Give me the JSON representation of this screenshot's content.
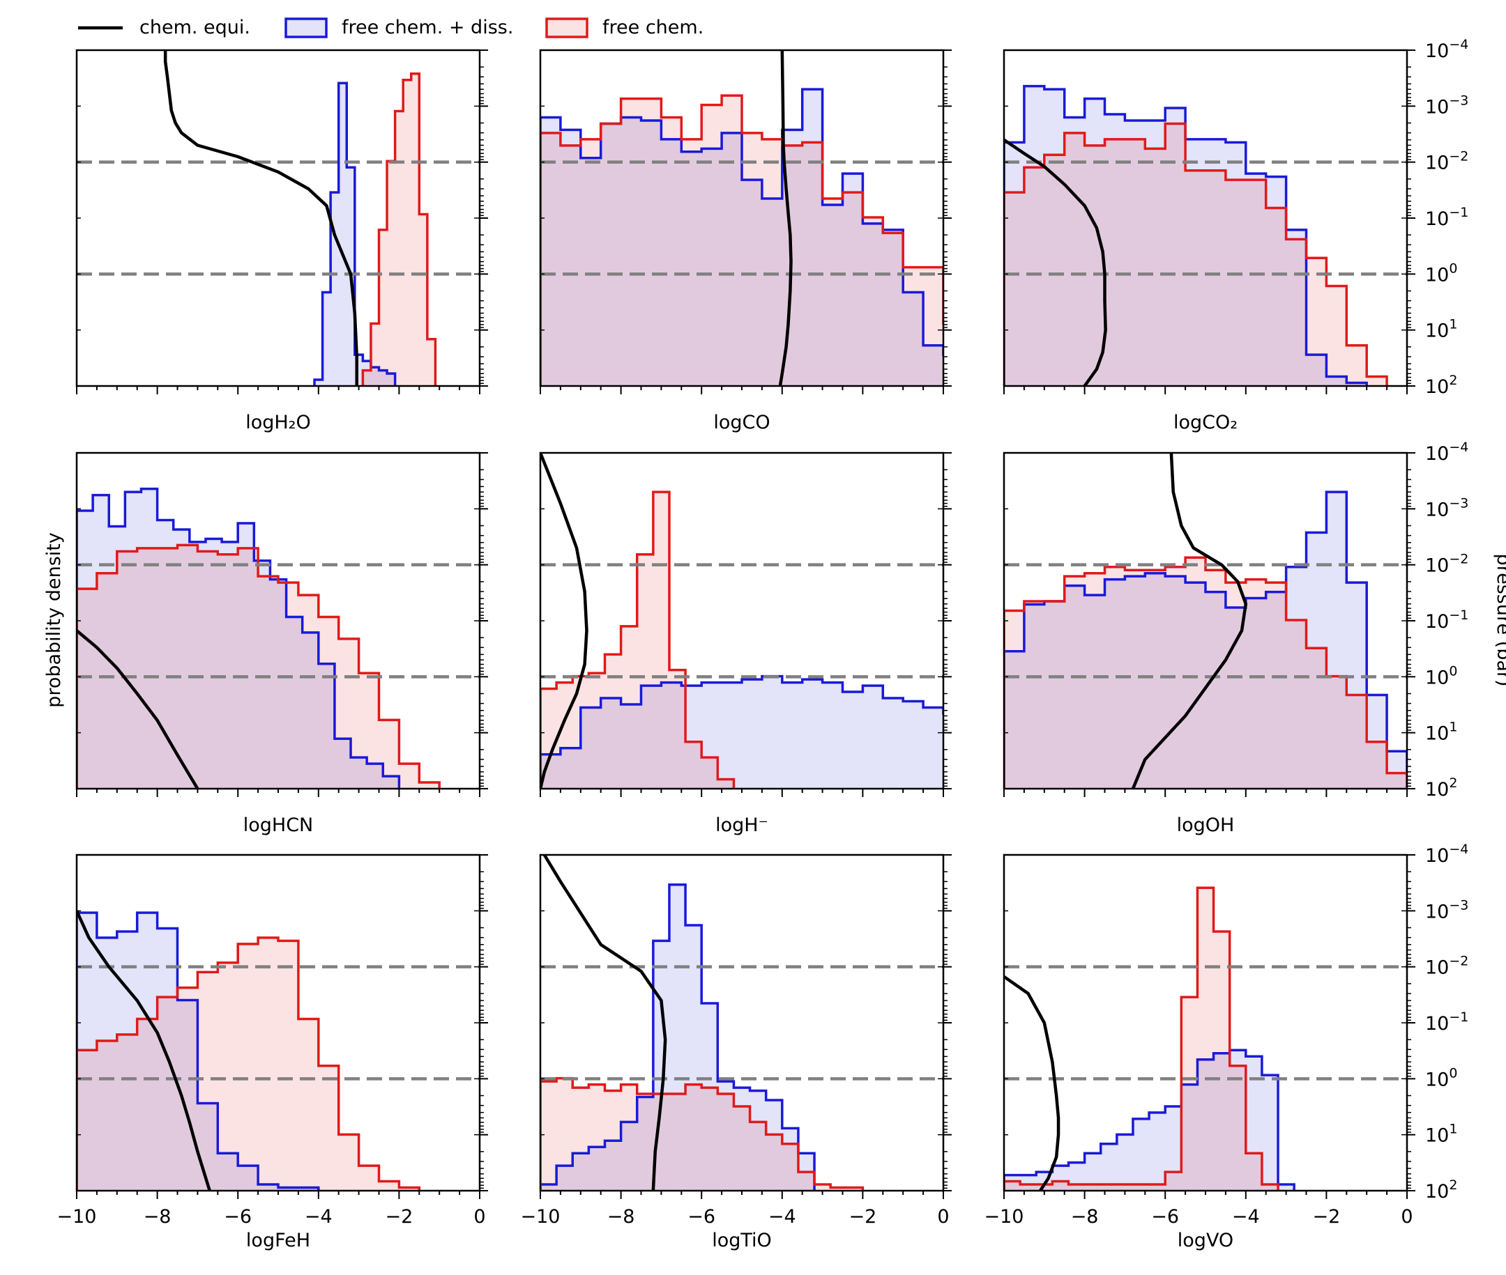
{
  "legend": {
    "placement": "top-left, outside plots",
    "entries": [
      {
        "label": "chem. equi.",
        "color": "#000000",
        "style": "line"
      },
      {
        "label": "free chem. + diss.",
        "color": "#1a1ad8",
        "fill": "rgba(26,26,216,0.12)",
        "style": "box"
      },
      {
        "label": "free chem.",
        "color": "#e01a1a",
        "fill": "rgba(224,26,26,0.12)",
        "style": "box"
      }
    ]
  },
  "axes": {
    "x_ticks": [
      "−10",
      "−8",
      "−6",
      "−4",
      "−2",
      "0"
    ],
    "left_ylabel": "probability density",
    "right_ylabel": "pressure (bar)",
    "right_ticks": [
      {
        "base": "10",
        "exp": "−4"
      },
      {
        "base": "10",
        "exp": "−3"
      },
      {
        "base": "10",
        "exp": "−2"
      },
      {
        "base": "10",
        "exp": "−1"
      },
      {
        "base": "10",
        "exp": "0"
      },
      {
        "base": "10",
        "exp": "1"
      },
      {
        "base": "10",
        "exp": "2"
      }
    ],
    "dashed_pressure_lines_bar": [
      0.01,
      1.0
    ]
  },
  "chart_data": [
    {
      "type": "histogram",
      "title": "",
      "xlabel": "logH₂O",
      "xlim": [
        -10,
        0
      ],
      "ylim_pressure": [
        0.0001,
        100
      ],
      "y_scale": "log",
      "series": [
        {
          "name": "free chem. + diss.",
          "edges_start": -4.1,
          "bin_width": 0.2,
          "values": [
            0.02,
            0.3,
            0.62,
            0.97,
            0.7,
            0.1,
            0.08,
            0.06,
            0.05,
            0.04
          ]
        },
        {
          "name": "free chem.",
          "edges_start": -2.9,
          "bin_width": 0.2,
          "values": [
            0.05,
            0.2,
            0.5,
            0.72,
            0.88,
            0.98,
            1.0,
            0.55,
            0.15
          ]
        },
        {
          "name": "chem. equi.",
          "kind": "profile",
          "x": [
            -7.8,
            -7.8,
            -7.75,
            -7.7,
            -7.65,
            -7.55,
            -7.4,
            -7.0,
            -6.0,
            -5.0,
            -4.25,
            -3.8,
            -3.6,
            -3.2,
            -3.1,
            -3.05,
            -3.05
          ],
          "pressure": [
            0.0001,
            0.00016,
            0.0003,
            0.0006,
            0.0012,
            0.002,
            0.003,
            0.005,
            0.008,
            0.015,
            0.03,
            0.06,
            0.2,
            1,
            5,
            30,
            100
          ]
        }
      ]
    },
    {
      "type": "histogram",
      "title": "",
      "xlabel": "logCO",
      "xlim": [
        -10,
        0
      ],
      "ylim_pressure": [
        0.0001,
        100
      ],
      "y_scale": "log",
      "series": [
        {
          "name": "free chem. + diss.",
          "edges_start": -10,
          "bin_width": 0.5,
          "values": [
            0.86,
            0.82,
            0.73,
            0.84,
            0.86,
            0.85,
            0.79,
            0.75,
            0.76,
            0.81,
            0.66,
            0.6,
            0.82,
            0.95,
            0.58,
            0.68,
            0.52,
            0.5,
            0.3,
            0.13,
            0.1,
            0.05
          ]
        },
        {
          "name": "free chem.",
          "edges_start": -10,
          "bin_width": 0.5,
          "values": [
            0.81,
            0.77,
            0.79,
            0.84,
            0.92,
            0.92,
            0.86,
            0.79,
            0.9,
            0.93,
            0.81,
            0.79,
            0.77,
            0.78,
            0.6,
            0.62,
            0.54,
            0.49,
            0.38,
            0.38,
            0.2,
            0.1
          ]
        },
        {
          "name": "chem. equi.",
          "kind": "profile",
          "x": [
            -4.0,
            -3.98,
            -3.97,
            -3.95,
            -3.9,
            -3.85,
            -3.8,
            -3.78,
            -3.8,
            -3.85,
            -3.9,
            -4.0,
            -4.05
          ],
          "pressure": [
            0.0001,
            0.001,
            0.005,
            0.01,
            0.03,
            0.08,
            0.2,
            0.6,
            2,
            8,
            20,
            60,
            100
          ]
        }
      ]
    },
    {
      "type": "histogram",
      "title": "",
      "xlabel": "logCO₂",
      "xlim": [
        -10,
        0
      ],
      "ylim_pressure": [
        0.0001,
        100
      ],
      "y_scale": "log",
      "series": [
        {
          "name": "free chem. + diss.",
          "edges_start": -10,
          "bin_width": 0.5,
          "values": [
            0.78,
            0.96,
            0.95,
            0.86,
            0.92,
            0.87,
            0.85,
            0.85,
            0.89,
            0.79,
            0.79,
            0.78,
            0.68,
            0.67,
            0.5,
            0.1,
            0.03,
            0.01
          ]
        },
        {
          "name": "free chem.",
          "edges_start": -10,
          "bin_width": 0.5,
          "values": [
            0.62,
            0.7,
            0.74,
            0.81,
            0.77,
            0.79,
            0.79,
            0.76,
            0.84,
            0.69,
            0.69,
            0.66,
            0.66,
            0.57,
            0.47,
            0.41,
            0.32,
            0.13,
            0.03
          ]
        },
        {
          "name": "chem. equi.",
          "kind": "profile",
          "x": [
            -10,
            -9.5,
            -9.0,
            -8.5,
            -8.0,
            -7.7,
            -7.55,
            -7.5,
            -7.5,
            -7.48,
            -7.55,
            -7.7,
            -8.0
          ],
          "pressure": [
            0.004,
            0.007,
            0.012,
            0.025,
            0.06,
            0.15,
            0.4,
            1,
            3,
            10,
            25,
            50,
            100
          ]
        }
      ]
    },
    {
      "type": "histogram",
      "title": "",
      "xlabel": "logHCN",
      "xlim": [
        -10,
        0
      ],
      "ylim_pressure": [
        0.0001,
        100
      ],
      "y_scale": "log",
      "series": [
        {
          "name": "free chem. + diss.",
          "edges_start": -10,
          "bin_width": 0.4,
          "values": [
            0.89,
            0.94,
            0.84,
            0.95,
            0.96,
            0.86,
            0.83,
            0.79,
            0.8,
            0.79,
            0.85,
            0.73,
            0.67,
            0.55,
            0.5,
            0.4,
            0.16,
            0.1,
            0.08,
            0.04
          ]
        },
        {
          "name": "free chem.",
          "edges_start": -10,
          "bin_width": 0.5,
          "values": [
            0.64,
            0.69,
            0.76,
            0.77,
            0.77,
            0.78,
            0.76,
            0.75,
            0.77,
            0.68,
            0.66,
            0.62,
            0.55,
            0.48,
            0.37,
            0.22,
            0.08,
            0.02
          ]
        },
        {
          "name": "chem. equi.",
          "kind": "profile",
          "x": [
            -10,
            -9.5,
            -9.0,
            -8.5,
            -8.0,
            -7.5,
            -7.0
          ],
          "pressure": [
            0.15,
            0.3,
            0.7,
            2,
            6,
            25,
            100
          ]
        }
      ]
    },
    {
      "type": "histogram",
      "title": "",
      "xlabel": "logH⁻",
      "xlim": [
        -10,
        0
      ],
      "ylim_pressure": [
        0.0001,
        100
      ],
      "y_scale": "log",
      "series": [
        {
          "name": "free chem. + diss.",
          "edges_start": -10,
          "bin_width": 0.5,
          "values": [
            0.11,
            0.13,
            0.26,
            0.29,
            0.27,
            0.33,
            0.34,
            0.33,
            0.34,
            0.34,
            0.35,
            0.36,
            0.34,
            0.35,
            0.34,
            0.31,
            0.33,
            0.29,
            0.28,
            0.26,
            0.24,
            0.18
          ]
        },
        {
          "name": "free chem.",
          "edges_start": -10,
          "bin_width": 0.4,
          "values": [
            0.32,
            0.34,
            0.36,
            0.37,
            0.43,
            0.52,
            0.75,
            0.95,
            0.38,
            0.15,
            0.1,
            0.03
          ]
        },
        {
          "name": "chem. equi.",
          "kind": "profile",
          "x": [
            -10,
            -9.5,
            -9.1,
            -8.9,
            -8.85,
            -8.9,
            -9.1,
            -9.4,
            -9.7,
            -9.9,
            -10
          ],
          "pressure": [
            0.0001,
            0.0008,
            0.005,
            0.03,
            0.15,
            0.6,
            2,
            6,
            20,
            50,
            100
          ]
        }
      ]
    },
    {
      "type": "histogram",
      "title": "",
      "xlabel": "logOH",
      "xlim": [
        -10,
        0
      ],
      "ylim_pressure": [
        0.0001,
        100
      ],
      "y_scale": "log",
      "series": [
        {
          "name": "free chem. + diss.",
          "edges_start": -10,
          "bin_width": 0.5,
          "values": [
            0.44,
            0.59,
            0.6,
            0.65,
            0.62,
            0.67,
            0.68,
            0.69,
            0.68,
            0.66,
            0.63,
            0.58,
            0.61,
            0.63,
            0.71,
            0.82,
            0.95,
            0.66,
            0.3,
            0.12
          ]
        },
        {
          "name": "free chem.",
          "edges_start": -10,
          "bin_width": 0.5,
          "values": [
            0.57,
            0.6,
            0.6,
            0.68,
            0.69,
            0.71,
            0.7,
            0.7,
            0.71,
            0.74,
            0.7,
            0.66,
            0.67,
            0.66,
            0.54,
            0.45,
            0.36,
            0.3,
            0.15,
            0.05
          ]
        },
        {
          "name": "chem. equi.",
          "kind": "profile",
          "x": [
            -5.85,
            -5.8,
            -5.6,
            -5.3,
            -4.6,
            -4.2,
            -4.0,
            -4.1,
            -4.5,
            -5.5,
            -6.5,
            -6.8
          ],
          "pressure": [
            0.0001,
            0.0005,
            0.002,
            0.005,
            0.01,
            0.02,
            0.05,
            0.15,
            0.5,
            5,
            30,
            100
          ]
        }
      ]
    },
    {
      "type": "histogram",
      "title": "",
      "xlabel": "logFeH",
      "xlim": [
        -10,
        0
      ],
      "ylim_pressure": [
        0.0001,
        100
      ],
      "y_scale": "log",
      "series": [
        {
          "name": "free chem. + diss.",
          "edges_start": -10,
          "bin_width": 0.5,
          "values": [
            0.89,
            0.81,
            0.83,
            0.89,
            0.84,
            0.61,
            0.28,
            0.12,
            0.08,
            0.02,
            0.01,
            0.01
          ]
        },
        {
          "name": "free chem.",
          "edges_start": -10,
          "bin_width": 0.5,
          "values": [
            0.45,
            0.48,
            0.5,
            0.55,
            0.62,
            0.65,
            0.7,
            0.73,
            0.79,
            0.81,
            0.8,
            0.55,
            0.4,
            0.18,
            0.08,
            0.03,
            0.01
          ]
        },
        {
          "name": "chem. equi.",
          "kind": "profile",
          "x": [
            -10,
            -9.7,
            -9.2,
            -8.5,
            -8.0,
            -7.7,
            -7.4,
            -7.2,
            -7.0,
            -6.7
          ],
          "pressure": [
            0.001,
            0.003,
            0.01,
            0.04,
            0.15,
            0.5,
            2,
            6,
            20,
            100
          ]
        }
      ]
    },
    {
      "type": "histogram",
      "title": "",
      "xlabel": "logTiO",
      "xlim": [
        -10,
        0
      ],
      "ylim_pressure": [
        0.0001,
        100
      ],
      "y_scale": "log",
      "series": [
        {
          "name": "free chem. + diss.",
          "edges_start": -10,
          "bin_width": 0.4,
          "values": [
            0.02,
            0.08,
            0.12,
            0.14,
            0.16,
            0.22,
            0.3,
            0.8,
            0.98,
            0.85,
            0.6,
            0.35,
            0.33,
            0.32,
            0.29,
            0.2,
            0.12
          ]
        },
        {
          "name": "free chem.",
          "edges_start": -10,
          "bin_width": 0.4,
          "values": [
            0.35,
            0.36,
            0.33,
            0.34,
            0.32,
            0.34,
            0.31,
            0.31,
            0.31,
            0.34,
            0.33,
            0.31,
            0.27,
            0.22,
            0.18,
            0.15,
            0.06,
            0.02,
            0.01,
            0.01
          ]
        },
        {
          "name": "chem. equi.",
          "kind": "profile",
          "x": [
            -9.9,
            -9.5,
            -8.5,
            -7.5,
            -7.0,
            -6.9,
            -6.95,
            -7.05,
            -7.15,
            -7.2
          ],
          "pressure": [
            0.0001,
            0.0003,
            0.004,
            0.012,
            0.04,
            0.2,
            1,
            5,
            20,
            100
          ]
        }
      ]
    },
    {
      "type": "histogram",
      "title": "",
      "xlabel": "logVO",
      "xlim": [
        -10,
        0
      ],
      "ylim_pressure": [
        0.0001,
        100
      ],
      "y_scale": "log",
      "series": [
        {
          "name": "free chem. + diss.",
          "edges_start": -10,
          "bin_width": 0.4,
          "values": [
            0.05,
            0.05,
            0.06,
            0.08,
            0.09,
            0.12,
            0.15,
            0.18,
            0.23,
            0.25,
            0.27,
            0.34,
            0.42,
            0.44,
            0.45,
            0.43,
            0.37,
            0.02
          ]
        },
        {
          "name": "free chem.",
          "edges_start": -10,
          "bin_width": 0.4,
          "values": [
            0.03,
            0.02,
            0.02,
            0.03,
            0.02,
            0.02,
            0.02,
            0.02,
            0.02,
            0.02,
            0.06,
            0.62,
            0.97,
            0.83,
            0.4,
            0.12,
            0.02
          ]
        },
        {
          "name": "chem. equi.",
          "kind": "profile",
          "x": [
            -10,
            -9.4,
            -9.0,
            -8.8,
            -8.7,
            -8.65,
            -8.65,
            -8.7,
            -8.9,
            -9.1
          ],
          "pressure": [
            0.015,
            0.03,
            0.1,
            0.5,
            2,
            5,
            10,
            25,
            60,
            100
          ]
        }
      ]
    }
  ]
}
